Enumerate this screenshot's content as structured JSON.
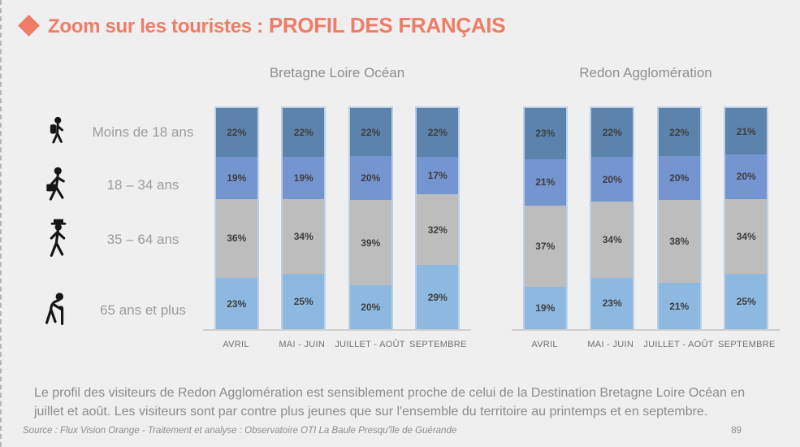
{
  "header": {
    "title_prefix": "Zoom sur les touristes :",
    "title_emphasis": "PROFIL DES FRANÇAIS",
    "accent_color": "#ee7c66"
  },
  "legend": {
    "rows": [
      {
        "icon": "child-backpack-icon",
        "label": "Moins de 18 ans"
      },
      {
        "icon": "adult-briefcase-icon",
        "label": "18 – 34 ans"
      },
      {
        "icon": "senior-hat-icon",
        "label": "35 – 64 ans"
      },
      {
        "icon": "elderly-cane-icon",
        "label": "65 ans et plus"
      }
    ]
  },
  "chart_data": [
    {
      "type": "bar",
      "stacked": true,
      "title": "Bretagne Loire Océan",
      "categories": [
        "AVRIL",
        "MAI - JUIN",
        "JUILLET - AOÛT",
        "SEPTEMBRE"
      ],
      "series": [
        {
          "name": "Moins de 18 ans",
          "color": "#5b83ac",
          "values": [
            22,
            22,
            22,
            22
          ]
        },
        {
          "name": "18 – 34 ans",
          "color": "#7595d1",
          "values": [
            19,
            19,
            20,
            17
          ]
        },
        {
          "name": "35 – 64 ans",
          "color": "#bebdbd",
          "values": [
            36,
            34,
            39,
            32
          ]
        },
        {
          "name": "65 ans et plus",
          "color": "#8db9e0",
          "values": [
            23,
            25,
            20,
            29
          ]
        }
      ],
      "unit": "%",
      "ylim": [
        0,
        100
      ],
      "grid": false,
      "legend_position": "left-pictograms"
    },
    {
      "type": "bar",
      "stacked": true,
      "title": "Redon Agglomération",
      "categories": [
        "AVRIL",
        "MAI - JUIN",
        "JUILLET - AOÛT",
        "SEPTEMBRE"
      ],
      "series": [
        {
          "name": "Moins de 18 ans",
          "color": "#5b83ac",
          "values": [
            23,
            22,
            22,
            21
          ]
        },
        {
          "name": "18 – 34 ans",
          "color": "#7595d1",
          "values": [
            21,
            20,
            20,
            20
          ]
        },
        {
          "name": "35 – 64 ans",
          "color": "#bebdbd",
          "values": [
            37,
            34,
            38,
            34
          ]
        },
        {
          "name": "65 ans et plus",
          "color": "#8db9e0",
          "values": [
            19,
            23,
            21,
            25
          ]
        }
      ],
      "unit": "%",
      "ylim": [
        0,
        100
      ],
      "grid": false,
      "legend_position": "left-pictograms"
    }
  ],
  "footer": {
    "body_text": "Le profil des visiteurs de Redon Agglomération est sensiblement proche de celui de la Destination Bretagne Loire Océan en juillet et août. Les visiteurs sont par contre plus jeunes que sur l'ensemble du territoire au printemps et en septembre.",
    "source": "Source : Flux Vision Orange - Traitement et analyse : Observatoire OTI La Baule Presqu'île de Guérande",
    "page_number": "89"
  }
}
